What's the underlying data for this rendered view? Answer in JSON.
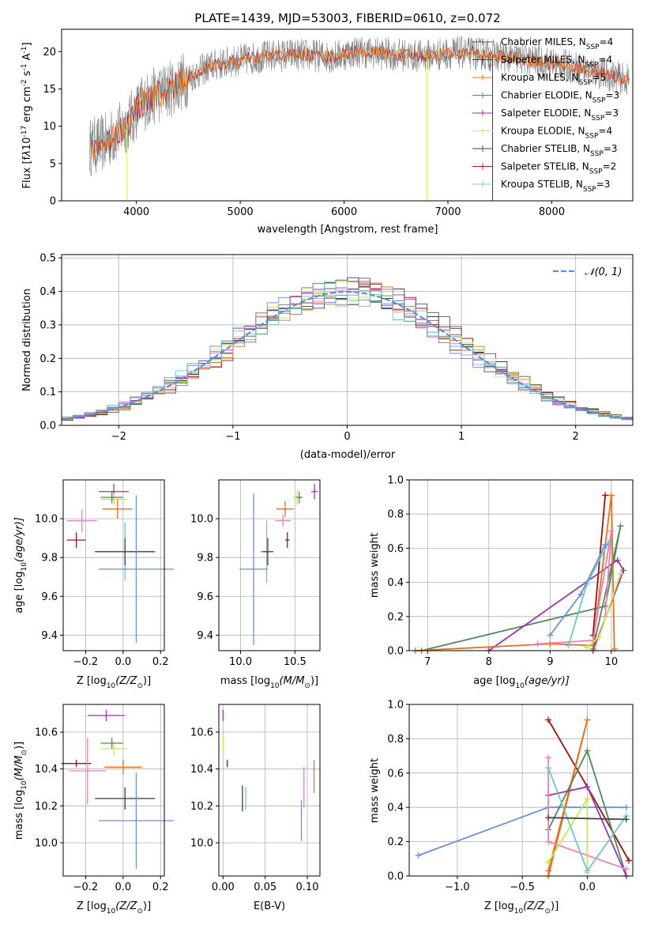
{
  "figure_title": "PLATE=1439, MJD=53003, FIBERID=0610, z=0.072",
  "colors": {
    "Chabrier MILES": "#555555",
    "Salpeter MILES": "#8b1a1a",
    "Kroupa MILES": "#ee7a1e",
    "Chabrier ELODIE": "#5b8a5b",
    "Salpeter ELODIE": "#9b2ba8",
    "Kroupa ELODIE": "#d8ec3a",
    "Chabrier STELIB": "#444444",
    "Salpeter STELIB": "#b0202a",
    "Kroupa STELIB": "#7fd0dc",
    "cornflower": "#6a8fdd",
    "pink": "#e882b8",
    "orange2": "#e8701a",
    "purple2": "#9a35b0",
    "green2": "#4f8a5a",
    "darkred": "#a01010",
    "lime": "#c8e84a",
    "teal": "#6bc8c8",
    "normal": "#5b8fd6"
  },
  "chart_data": [
    {
      "type": "line",
      "panel": "spectrum",
      "xlabel": "wavelength [Angstrom, rest frame]",
      "ylabel_main": "Flux [f",
      "ylabel_rest": "10",
      "ylabel_exp": "-17",
      "ylabel_units": "erg cm",
      "ylabel_units_exp": "-2",
      "ylabel_s": "s",
      "ylabel_s_exp": "-1",
      "ylabel_A": "A",
      "ylabel_A_exp": "-1",
      "xlim": [
        3280,
        8780
      ],
      "ylim": [
        0,
        23
      ],
      "xticks": [
        "4000",
        "5000",
        "6000",
        "7000",
        "8000"
      ],
      "yticks": [
        "0",
        "5",
        "10",
        "15",
        "20"
      ],
      "legend_position": "right",
      "legend": [
        {
          "name": "Chabrier MILES, N",
          "sub": "SSP",
          "val": "=4"
        },
        {
          "name": "Salpeter MILES, N",
          "sub": "SSP",
          "val": "=4"
        },
        {
          "name": "Kroupa MILES, N",
          "sub": "SSP",
          "val": "=5"
        },
        {
          "name": "Chabrier ELODIE, N",
          "sub": "SSP",
          "val": "=3"
        },
        {
          "name": "Salpeter ELODIE, N",
          "sub": "SSP",
          "val": "=3"
        },
        {
          "name": "Kroupa ELODIE, N",
          "sub": "SSP",
          "val": "=4"
        },
        {
          "name": "Chabrier STELIB, N",
          "sub": "SSP",
          "val": "=3"
        },
        {
          "name": "Salpeter STELIB, N",
          "sub": "SSP",
          "val": "=2"
        },
        {
          "name": "Kroupa STELIB, N",
          "sub": "SSP",
          "val": "=3"
        }
      ],
      "continuum": {
        "x": [
          3550,
          3700,
          3850,
          3950,
          4050,
          4200,
          4350,
          4500,
          4700,
          4900,
          5100,
          5300,
          5500,
          5700,
          5900,
          6100,
          6300,
          6500,
          6700,
          6900,
          7100,
          7300,
          7500,
          7700,
          7900,
          8100,
          8300,
          8500,
          8700
        ],
        "y": [
          7.2,
          7.8,
          9.5,
          11.0,
          13.0,
          14.2,
          15.2,
          16.5,
          18.0,
          18.6,
          19.1,
          19.4,
          19.6,
          19.5,
          19.3,
          20.0,
          19.8,
          19.6,
          19.4,
          19.6,
          19.9,
          19.7,
          19.4,
          19.0,
          18.6,
          18.2,
          17.7,
          17.0,
          16.3
        ]
      },
      "spikes": [
        {
          "x": 3910,
          "y": 0
        },
        {
          "x": 6800,
          "y": 0
        },
        {
          "x": 7430,
          "y": 0
        }
      ]
    },
    {
      "type": "bar",
      "panel": "residual_histogram",
      "xlabel": "(data-model)/error",
      "ylabel": "Normed distribution",
      "xlim": [
        -2.5,
        2.5
      ],
      "ylim": [
        0,
        0.51
      ],
      "xticks": [
        "−2",
        "−1",
        "0",
        "1",
        "2"
      ],
      "yticks": [
        "0.0",
        "0.1",
        "0.2",
        "0.3",
        "0.4",
        "0.5"
      ],
      "bin_width": 0.1,
      "legend_label": "𝒩(0, 1)",
      "legend_position": "upper right",
      "grid": true
    },
    {
      "type": "scatter",
      "panel": "age_vs_Z",
      "xlabel": "Z [log",
      "xlabel_sub": "10",
      "xlabel_rest": "(Z/Z",
      "xlabel_end": ")]",
      "ylabel": "age  [log",
      "ylabel_sub": "10",
      "ylabel_rest": "(age/yr)]",
      "xlim": [
        -0.32,
        0.22
      ],
      "ylim": [
        9.32,
        10.2
      ],
      "xticks": [
        "−0.2",
        "0.0",
        "0.2"
      ],
      "yticks": [
        "9.4",
        "9.6",
        "9.8",
        "10.0"
      ],
      "points": [
        {
          "x": -0.05,
          "y": 10.14,
          "xerr": 0.08,
          "yerr": 0.04,
          "c": "purple2"
        },
        {
          "x": -0.05,
          "y": 10.1,
          "xerr": 0.07,
          "yerr": 0.03,
          "c": "lime"
        },
        {
          "x": -0.06,
          "y": 10.11,
          "xerr": 0.06,
          "yerr": 0.03,
          "c": "green2"
        },
        {
          "x": -0.03,
          "y": 10.05,
          "xerr": 0.08,
          "yerr": 0.05,
          "c": "orange2"
        },
        {
          "x": -0.22,
          "y": 9.99,
          "xerr": 0.08,
          "yerr": 0.06,
          "c": "pink"
        },
        {
          "x": -0.25,
          "y": 9.89,
          "xerr": 0.05,
          "yerr": 0.04,
          "c": "darkred"
        },
        {
          "x": 0.01,
          "y": 9.83,
          "xerr": 0.16,
          "yerr": 0.15,
          "c": "teal"
        },
        {
          "x": 0.01,
          "y": 9.83,
          "xerr": 0.16,
          "yerr": 0.07,
          "c": "Chabrier STELIB"
        },
        {
          "x": 0.07,
          "y": 9.74,
          "xerr": 0.2,
          "yerr": 0.38,
          "c": "cornflower"
        }
      ]
    },
    {
      "type": "scatter",
      "panel": "age_vs_mass",
      "xlabel": "mass [log",
      "xlabel_sub": "10",
      "xlabel_rest": "(M/M",
      "xlabel_end": ")]",
      "xlim": [
        9.8,
        10.73
      ],
      "ylim": [
        9.32,
        10.2
      ],
      "xticks": [
        "10.0",
        "10.5"
      ],
      "yticks": [
        "9.4",
        "9.6",
        "9.8",
        "10.0"
      ],
      "points": [
        {
          "x": 10.68,
          "y": 10.14,
          "xerr": 0.03,
          "yerr": 0.04,
          "c": "purple2"
        },
        {
          "x": 10.52,
          "y": 10.11,
          "xerr": 0.04,
          "yerr": 0.04,
          "c": "lime"
        },
        {
          "x": 10.54,
          "y": 10.11,
          "xerr": 0.03,
          "yerr": 0.03,
          "c": "green2"
        },
        {
          "x": 10.41,
          "y": 10.05,
          "xerr": 0.08,
          "yerr": 0.04,
          "c": "orange2"
        },
        {
          "x": 10.39,
          "y": 9.99,
          "xerr": 0.07,
          "yerr": 0.03,
          "c": "pink"
        },
        {
          "x": 10.43,
          "y": 9.89,
          "xerr": 0.02,
          "yerr": 0.04,
          "c": "darkred"
        },
        {
          "x": 10.24,
          "y": 9.83,
          "xerr": 0.06,
          "yerr": 0.16,
          "c": "teal"
        },
        {
          "x": 10.25,
          "y": 9.83,
          "xerr": 0.05,
          "yerr": 0.07,
          "c": "Chabrier STELIB"
        },
        {
          "x": 10.12,
          "y": 9.74,
          "xerr": 0.13,
          "yerr": 0.39,
          "c": "cornflower"
        }
      ]
    },
    {
      "type": "line",
      "panel": "mass_weight_vs_age",
      "xlabel": "age  [log",
      "xlabel_sub": "10",
      "xlabel_rest": "(age/yr)]",
      "ylabel": "mass weight",
      "xlim": [
        6.7,
        10.35
      ],
      "ylim": [
        0,
        1.0
      ],
      "xticks": [
        "7",
        "8",
        "9",
        "10"
      ],
      "yticks": [
        "0.0",
        "0.2",
        "0.4",
        "0.6",
        "0.8",
        "1.0"
      ],
      "grid": true,
      "series": [
        {
          "c": "green2",
          "x": [
            6.9,
            9.9,
            10.15,
            9.7
          ],
          "y": [
            0.0,
            0.26,
            0.73,
            0.01
          ]
        },
        {
          "c": "purple2",
          "x": [
            8.0,
            10.1,
            10.2,
            9.7
          ],
          "y": [
            0.0,
            0.53,
            0.47,
            0.0
          ]
        },
        {
          "c": "orange2",
          "x": [
            6.8,
            9.0,
            9.7,
            10.0,
            10.05
          ],
          "y": [
            0.0,
            0.04,
            0.03,
            0.91,
            0.01
          ]
        },
        {
          "c": "darkred",
          "x": [
            9.7,
            9.9
          ],
          "y": [
            0.09,
            0.91
          ]
        },
        {
          "c": "pink",
          "x": [
            8.8,
            9.7,
            10.0,
            9.9
          ],
          "y": [
            0.04,
            0.06,
            0.7,
            0.2
          ]
        },
        {
          "c": "lime",
          "x": [
            9.6,
            9.8,
            10.15
          ],
          "y": [
            0.02,
            0.08,
            0.45
          ]
        },
        {
          "c": "teal",
          "x": [
            9.3,
            9.6,
            9.95
          ],
          "y": [
            0.03,
            0.39,
            0.63
          ]
        },
        {
          "c": "cornflower",
          "x": [
            9.0,
            9.5,
            9.9
          ],
          "y": [
            0.09,
            0.33,
            0.62
          ]
        }
      ]
    },
    {
      "type": "scatter",
      "panel": "mass_vs_Z",
      "xlabel": "Z [log",
      "xlabel_sub": "10",
      "xlabel_rest": "(Z/Z",
      "xlabel_end": ")]",
      "ylabel": "mass [log",
      "ylabel_sub": "10",
      "ylabel_rest": "(M/M",
      "ylabel_end": ")]",
      "xlim": [
        -0.32,
        0.22
      ],
      "ylim": [
        9.82,
        10.75
      ],
      "xticks": [
        "−0.2",
        "0.0",
        "0.2"
      ],
      "yticks": [
        "10.0",
        "10.2",
        "10.4",
        "10.6"
      ],
      "points": [
        {
          "x": -0.09,
          "y": 10.69,
          "xerr": 0.1,
          "yerr": 0.03,
          "c": "purple2"
        },
        {
          "x": -0.05,
          "y": 10.51,
          "xerr": 0.07,
          "yerr": 0.04,
          "c": "lime"
        },
        {
          "x": -0.06,
          "y": 10.54,
          "xerr": 0.06,
          "yerr": 0.03,
          "c": "green2"
        },
        {
          "x": 0.0,
          "y": 10.41,
          "xerr": 0.1,
          "yerr": 0.04,
          "c": "orange2"
        },
        {
          "x": -0.25,
          "y": 10.43,
          "xerr": 0.08,
          "yerr": 0.02,
          "c": "darkred"
        },
        {
          "x": -0.19,
          "y": 10.39,
          "xerr": 0.1,
          "yerr": 0.18,
          "c": "pink"
        },
        {
          "x": 0.01,
          "y": 10.24,
          "xerr": 0.16,
          "yerr": 0.06,
          "c": "teal"
        },
        {
          "x": 0.01,
          "y": 10.24,
          "xerr": 0.16,
          "yerr": 0.06,
          "c": "Chabrier STELIB"
        },
        {
          "x": 0.07,
          "y": 10.12,
          "xerr": 0.2,
          "yerr": 0.26,
          "c": "cornflower"
        }
      ]
    },
    {
      "type": "scatter",
      "panel": "mass_vs_EBV",
      "xlabel": "E(B-V)",
      "xlim": [
        -0.005,
        0.115
      ],
      "ylim": [
        9.82,
        10.75
      ],
      "xticks": [
        "0.00",
        "0.05",
        "0.10"
      ],
      "yticks": [
        "10.0",
        "10.2",
        "10.4",
        "10.6"
      ],
      "points": [
        {
          "x": 0.0,
          "y": 10.69,
          "xerr": 0.0,
          "yerr": 0.03,
          "c": "purple2"
        },
        {
          "x": 0.0,
          "y": 10.53,
          "xerr": 0.0,
          "yerr": 0.05,
          "c": "lime"
        },
        {
          "x": 0.005,
          "y": 10.43,
          "xerr": 0.0,
          "yerr": 0.02,
          "c": "darkred"
        },
        {
          "x": 0.108,
          "y": 10.36,
          "xerr": 0.0,
          "yerr": 0.09,
          "c": "orange2"
        },
        {
          "x": 0.096,
          "y": 10.3,
          "xerr": 0.0,
          "yerr": 0.11,
          "c": "pink"
        },
        {
          "x": 0.023,
          "y": 10.24,
          "xerr": 0.0,
          "yerr": 0.07,
          "c": "Chabrier STELIB"
        },
        {
          "x": 0.027,
          "y": 10.24,
          "xerr": 0.0,
          "yerr": 0.06,
          "c": "teal"
        },
        {
          "x": 0.093,
          "y": 10.12,
          "xerr": 0.0,
          "yerr": 0.11,
          "c": "cornflower"
        }
      ]
    },
    {
      "type": "line",
      "panel": "mass_weight_vs_Z",
      "xlabel": "Z [log",
      "xlabel_sub": "10",
      "xlabel_rest": "(Z/Z",
      "xlabel_end": ")]",
      "ylabel": "mass weight",
      "xlim": [
        -1.37,
        0.35
      ],
      "ylim": [
        0,
        1.0
      ],
      "xticks": [
        "−1.0",
        "−0.5",
        "0.0"
      ],
      "yticks": [
        "0.0",
        "0.2",
        "0.4",
        "0.6",
        "0.8",
        "1.0"
      ],
      "grid": true,
      "series": [
        {
          "c": "cornflower",
          "x": [
            -1.3,
            -0.3,
            0.3
          ],
          "y": [
            0.12,
            0.4,
            0.4
          ]
        },
        {
          "c": "darkred",
          "x": [
            -0.3,
            0.0,
            0.32
          ],
          "y": [
            0.91,
            0.52,
            0.09
          ]
        },
        {
          "c": "orange2",
          "x": [
            -0.3,
            0.0,
            -0.3
          ],
          "y": [
            0.0,
            0.91,
            0.03
          ]
        },
        {
          "c": "green2",
          "x": [
            -0.3,
            0.0,
            0.3
          ],
          "y": [
            0.27,
            0.73,
            0.0
          ]
        },
        {
          "c": "purple2",
          "x": [
            -0.3,
            0.0,
            0.3
          ],
          "y": [
            0.47,
            0.52,
            0.0
          ]
        },
        {
          "c": "pink",
          "x": [
            -0.3,
            -0.3,
            0.3
          ],
          "y": [
            0.69,
            0.2,
            0.04
          ]
        },
        {
          "c": "lime",
          "x": [
            -0.3,
            0.0,
            0.0
          ],
          "y": [
            0.08,
            0.45,
            0.02
          ]
        },
        {
          "c": "teal",
          "x": [
            -0.3,
            0.0,
            0.3
          ],
          "y": [
            0.63,
            0.03,
            0.35
          ]
        },
        {
          "c": "Chabrier STELIB",
          "x": [
            -0.3,
            0.3
          ],
          "y": [
            0.34,
            0.33
          ]
        }
      ]
    }
  ]
}
